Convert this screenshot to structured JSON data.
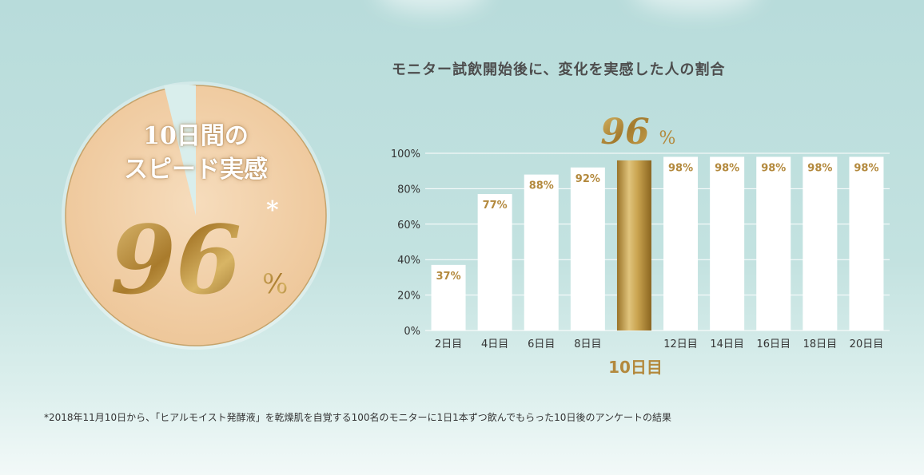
{
  "colors": {
    "gold": "#b89445",
    "bar": "#ffffff",
    "label_gold": "#b3893d",
    "circle_fill": "#f0cfa5",
    "circle_border": "#c6a36b"
  },
  "badge": {
    "line1": "10日間の",
    "line2": "スピード実感",
    "value": "96",
    "asterisk": "*",
    "unit": "%"
  },
  "highlight": {
    "value": "96",
    "unit": "%",
    "category_label": "10日目"
  },
  "footnote": "*2018年11月10日から、「ヒアルモイスト発酵液」を乾燥肌を自覚する100名のモニターに1日1本ずつ飲んでもらった10日後のアンケートの結果",
  "chart_data": {
    "type": "bar",
    "title": "モニター試飲開始後に、変化を実感した人の割合",
    "categories": [
      "2日目",
      "4日目",
      "6日目",
      "8日目",
      "10日目",
      "12日目",
      "14日目",
      "16日目",
      "18日目",
      "20日目"
    ],
    "values": [
      37,
      77,
      88,
      92,
      96,
      98,
      98,
      98,
      98,
      98
    ],
    "data_labels": [
      "37%",
      "77%",
      "88%",
      "92%",
      "",
      "98%",
      "98%",
      "98%",
      "98%",
      "98%"
    ],
    "highlight_index": 4,
    "ylim": [
      0,
      100
    ],
    "yticks": [
      0,
      20,
      40,
      60,
      80,
      100
    ],
    "ytick_labels": [
      "0%",
      "20%",
      "40%",
      "60%",
      "80%",
      "100%"
    ],
    "grid": true,
    "xlabel": "",
    "ylabel": ""
  }
}
